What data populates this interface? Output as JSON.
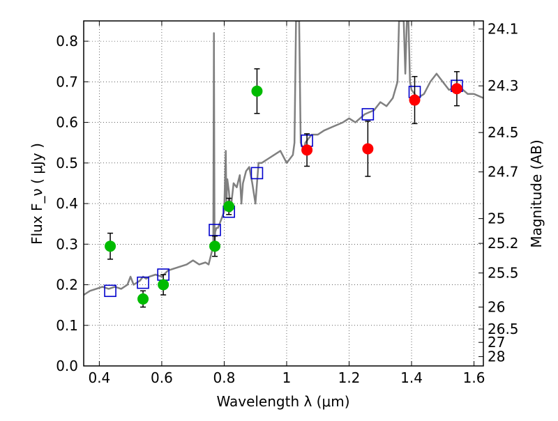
{
  "chart_data": {
    "type": "scatter",
    "xlabel": "Wavelength  λ (μm)",
    "ylabel": "Flux  F_ν  ( μJy )",
    "ylabel_right": "Magnitude (AB)",
    "xlim": [
      0.35,
      1.63
    ],
    "ylim": [
      0.0,
      0.85
    ],
    "grid": true,
    "x_ticks": [
      "0.4",
      "0.6",
      "0.8",
      "1",
      "1.2",
      "1.4",
      "1.6"
    ],
    "x_tick_values": [
      0.4,
      0.6,
      0.8,
      1.0,
      1.2,
      1.4,
      1.6
    ],
    "y_ticks": [
      "0.0",
      "0.1",
      "0.2",
      "0.3",
      "0.4",
      "0.5",
      "0.6",
      "0.7",
      "0.8"
    ],
    "y_tick_values": [
      0.0,
      0.1,
      0.2,
      0.3,
      0.4,
      0.5,
      0.6,
      0.7,
      0.8
    ],
    "right_ticks": [
      {
        "label": "24.1",
        "flux": 0.83
      },
      {
        "label": "24.3",
        "flux": 0.69
      },
      {
        "label": "24.5",
        "flux": 0.575
      },
      {
        "label": "24.7",
        "flux": 0.478
      },
      {
        "label": "25",
        "flux": 0.363
      },
      {
        "label": "25.2",
        "flux": 0.302
      },
      {
        "label": "25.5",
        "flux": 0.229
      },
      {
        "label": "26",
        "flux": 0.145
      },
      {
        "label": "26.5",
        "flux": 0.091
      },
      {
        "label": "27",
        "flux": 0.058
      },
      {
        "label": "28",
        "flux": 0.023
      }
    ],
    "series": [
      {
        "name": "Model spectrum",
        "kind": "line",
        "color": "#808080",
        "x": [
          0.35,
          0.37,
          0.39,
          0.41,
          0.43,
          0.45,
          0.47,
          0.49,
          0.5,
          0.51,
          0.52,
          0.53,
          0.54,
          0.55,
          0.56,
          0.58,
          0.6,
          0.62,
          0.64,
          0.66,
          0.68,
          0.7,
          0.72,
          0.74,
          0.75,
          0.76,
          0.765,
          0.767,
          0.769,
          0.771,
          0.775,
          0.78,
          0.79,
          0.8,
          0.805,
          0.807,
          0.81,
          0.815,
          0.82,
          0.83,
          0.84,
          0.85,
          0.855,
          0.86,
          0.87,
          0.88,
          0.89,
          0.9,
          0.91,
          0.92,
          0.94,
          0.96,
          0.98,
          1.0,
          1.01,
          1.02,
          1.025,
          1.03,
          1.035,
          1.04,
          1.045,
          1.05,
          1.055,
          1.06,
          1.07,
          1.08,
          1.1,
          1.12,
          1.15,
          1.18,
          1.2,
          1.22,
          1.25,
          1.28,
          1.3,
          1.32,
          1.34,
          1.355,
          1.36,
          1.365,
          1.37,
          1.375,
          1.38,
          1.385,
          1.39,
          1.395,
          1.4,
          1.42,
          1.44,
          1.46,
          1.48,
          1.5,
          1.52,
          1.55,
          1.58,
          1.6,
          1.63
        ],
        "y": [
          0.175,
          0.185,
          0.19,
          0.195,
          0.19,
          0.195,
          0.19,
          0.2,
          0.22,
          0.2,
          0.205,
          0.21,
          0.22,
          0.215,
          0.22,
          0.225,
          0.22,
          0.235,
          0.24,
          0.245,
          0.25,
          0.26,
          0.25,
          0.255,
          0.25,
          0.28,
          0.3,
          0.82,
          0.3,
          0.33,
          0.34,
          0.34,
          0.36,
          0.38,
          0.53,
          0.4,
          0.46,
          0.43,
          0.38,
          0.45,
          0.44,
          0.47,
          0.4,
          0.45,
          0.48,
          0.49,
          0.45,
          0.4,
          0.5,
          0.5,
          0.51,
          0.52,
          0.53,
          0.5,
          0.51,
          0.52,
          0.55,
          0.85,
          0.85,
          0.85,
          0.55,
          0.54,
          0.53,
          0.55,
          0.56,
          0.57,
          0.57,
          0.58,
          0.59,
          0.6,
          0.61,
          0.6,
          0.62,
          0.63,
          0.65,
          0.64,
          0.66,
          0.7,
          0.85,
          0.85,
          0.85,
          0.85,
          0.72,
          0.85,
          0.85,
          0.7,
          0.68,
          0.66,
          0.67,
          0.7,
          0.72,
          0.7,
          0.68,
          0.69,
          0.67,
          0.67,
          0.66
        ]
      },
      {
        "name": "Model photometry",
        "kind": "square",
        "color": "#0000cc",
        "x": [
          0.435,
          0.54,
          0.605,
          0.77,
          0.815,
          0.905,
          1.065,
          1.26,
          1.41,
          1.545
        ],
        "y": [
          0.185,
          0.205,
          0.225,
          0.335,
          0.38,
          0.475,
          0.555,
          0.62,
          0.675,
          0.69
        ]
      },
      {
        "name": "Observed (green)",
        "kind": "circle",
        "color": "#00bb00",
        "x": [
          0.435,
          0.54,
          0.605,
          0.77,
          0.815,
          0.905
        ],
        "y": [
          0.295,
          0.165,
          0.2,
          0.295,
          0.393,
          0.677
        ],
        "yerr": [
          0.032,
          0.02,
          0.025,
          0.025,
          0.02,
          0.055
        ]
      },
      {
        "name": "Observed (red)",
        "kind": "circle",
        "color": "#ff0000",
        "x": [
          1.065,
          1.26,
          1.41,
          1.545
        ],
        "y": [
          0.532,
          0.535,
          0.655,
          0.683
        ],
        "yerr": [
          0.04,
          0.068,
          0.058,
          0.042
        ]
      }
    ]
  }
}
